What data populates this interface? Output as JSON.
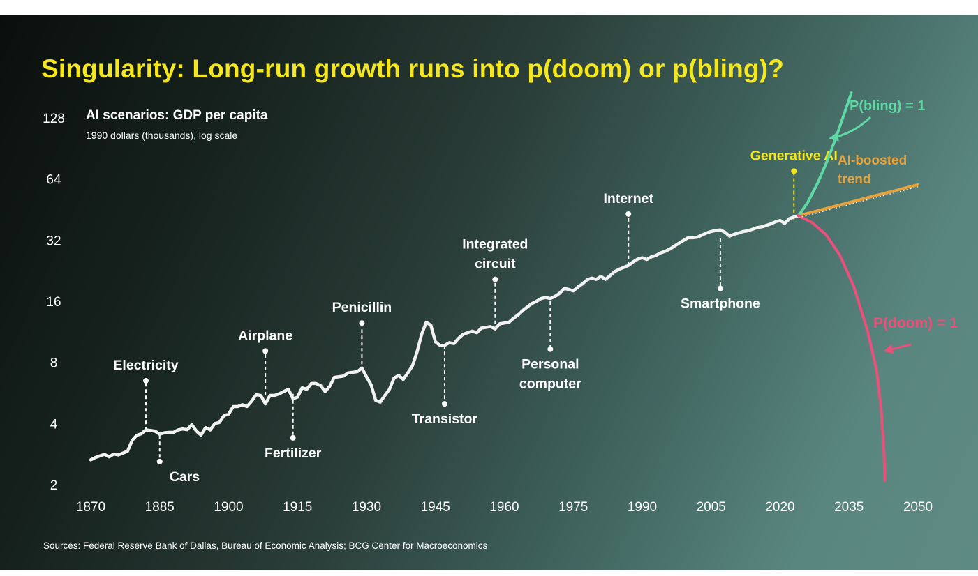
{
  "headline": "Singularity: Long-run growth runs into p(doom) or p(bling)?",
  "source": "Sources: Federal Reserve Bank of Dallas, Bureau of Economic Analysis; BCG Center for Macroeconomics",
  "colors": {
    "headline": "#f5e71f",
    "history": "#f2f2f2",
    "bling": "#5fd9a4",
    "doom": "#e9507a",
    "trend": "#e8a23c",
    "genai": "#f5e71f",
    "text": "#ffffff"
  },
  "chart_data": {
    "type": "line",
    "title": "AI scenarios: GDP per capita",
    "subtitle": "1990 dollars (thousands), log scale",
    "y_scale": "log2",
    "ylim": [
      2,
      128
    ],
    "xlim": [
      1870,
      2050
    ],
    "y_ticks": [
      2,
      4,
      8,
      16,
      32,
      64,
      128
    ],
    "x_ticks": [
      1870,
      1885,
      1900,
      1915,
      1930,
      1945,
      1960,
      1975,
      1990,
      2005,
      2020,
      2035,
      2050
    ],
    "series": [
      {
        "key": "history",
        "x": [
          1870,
          1871,
          1872,
          1873,
          1874,
          1875,
          1876,
          1877,
          1878,
          1879,
          1880,
          1881,
          1882,
          1883,
          1884,
          1885,
          1886,
          1887,
          1888,
          1889,
          1890,
          1891,
          1892,
          1893,
          1894,
          1895,
          1896,
          1897,
          1898,
          1899,
          1900,
          1901,
          1902,
          1903,
          1904,
          1905,
          1906,
          1907,
          1908,
          1909,
          1910,
          1911,
          1912,
          1913,
          1914,
          1915,
          1916,
          1917,
          1918,
          1919,
          1920,
          1921,
          1922,
          1923,
          1924,
          1925,
          1926,
          1927,
          1928,
          1929,
          1930,
          1931,
          1932,
          1933,
          1934,
          1935,
          1936,
          1937,
          1938,
          1939,
          1940,
          1941,
          1942,
          1943,
          1944,
          1945,
          1946,
          1947,
          1948,
          1949,
          1950,
          1951,
          1952,
          1953,
          1954,
          1955,
          1956,
          1957,
          1958,
          1959,
          1960,
          1961,
          1962,
          1963,
          1964,
          1965,
          1966,
          1967,
          1968,
          1969,
          1970,
          1971,
          1972,
          1973,
          1974,
          1975,
          1976,
          1977,
          1978,
          1979,
          1980,
          1981,
          1982,
          1983,
          1984,
          1985,
          1986,
          1987,
          1988,
          1989,
          1990,
          1991,
          1992,
          1993,
          1994,
          1995,
          1996,
          1997,
          1998,
          1999,
          2000,
          2001,
          2002,
          2003,
          2004,
          2005,
          2006,
          2007,
          2008,
          2009,
          2010,
          2011,
          2012,
          2013,
          2014,
          2015,
          2016,
          2017,
          2018,
          2019,
          2020,
          2021,
          2022,
          2023,
          2024
        ],
        "values": [
          2.65,
          2.72,
          2.77,
          2.82,
          2.74,
          2.83,
          2.8,
          2.86,
          2.92,
          3.3,
          3.5,
          3.56,
          3.72,
          3.7,
          3.67,
          3.54,
          3.6,
          3.62,
          3.62,
          3.72,
          3.76,
          3.73,
          3.95,
          3.67,
          3.51,
          3.82,
          3.72,
          4.0,
          4.05,
          4.38,
          4.45,
          4.85,
          4.85,
          4.95,
          4.85,
          5.15,
          5.55,
          5.5,
          5.0,
          5.5,
          5.5,
          5.6,
          5.75,
          5.9,
          5.3,
          5.4,
          6.0,
          5.9,
          6.3,
          6.3,
          6.15,
          5.75,
          6.1,
          6.75,
          6.8,
          6.85,
          7.1,
          7.15,
          7.2,
          7.5,
          6.8,
          6.2,
          5.2,
          5.1,
          5.5,
          5.9,
          6.7,
          6.9,
          6.6,
          7.1,
          7.7,
          9.0,
          11.0,
          12.6,
          12.2,
          10.1,
          9.7,
          9.7,
          10.0,
          9.9,
          10.5,
          11.0,
          11.2,
          11.4,
          11.2,
          11.8,
          11.9,
          12.0,
          11.7,
          12.4,
          12.5,
          12.6,
          13.2,
          13.7,
          14.4,
          15.0,
          15.6,
          16.0,
          16.5,
          16.7,
          16.5,
          16.9,
          17.5,
          18.5,
          18.3,
          18.0,
          18.8,
          19.5,
          20.4,
          20.8,
          20.5,
          21.2,
          20.5,
          21.4,
          22.4,
          23.0,
          23.5,
          24.0,
          25.0,
          25.8,
          26.2,
          25.7,
          26.5,
          26.9,
          27.7,
          28.2,
          28.9,
          29.9,
          30.9,
          31.9,
          32.9,
          32.9,
          33.1,
          33.9,
          34.7,
          35.3,
          35.7,
          35.9,
          35.0,
          33.5,
          34.2,
          34.7,
          35.3,
          35.6,
          36.2,
          36.9,
          37.2,
          37.8,
          38.5,
          39.4,
          40.0,
          38.7,
          40.8,
          41.6,
          42.2
        ]
      },
      {
        "key": "ai-boosted-trend",
        "name": "AI-boosted\ntrend",
        "x": [
          2024,
          2030,
          2035,
          2040,
          2045,
          2050
        ],
        "values": [
          42.2,
          45.8,
          49.0,
          52.5,
          56.1,
          60.0
        ]
      },
      {
        "key": "bling",
        "name": "P(bling) = 1",
        "x": [
          2024,
          2026,
          2028,
          2030,
          2032,
          2034,
          2035.5
        ],
        "values": [
          42.2,
          49,
          60,
          76,
          100,
          135,
          170
        ]
      },
      {
        "key": "doom",
        "name": "P(doom) = 1",
        "x": [
          2024,
          2027,
          2030,
          2033,
          2036,
          2039,
          2041,
          2042,
          2042.6,
          2042.8
        ],
        "values": [
          42.2,
          39,
          34,
          27,
          19,
          11.5,
          7.3,
          4.7,
          2.9,
          2.1
        ]
      }
    ],
    "annotations": [
      {
        "label": "Electricity",
        "x": 1882,
        "y": 3.7,
        "tip": 6.5
      },
      {
        "label": "Cars",
        "x": 1885,
        "y": 3.5,
        "tip": 2.6
      },
      {
        "label": "Airplane",
        "x": 1908,
        "y": 5.5,
        "tip": 9.1
      },
      {
        "label": "Fertilizer",
        "x": 1914,
        "y": 5.6,
        "tip": 3.4
      },
      {
        "label": "Penicillin",
        "x": 1929,
        "y": 7.3,
        "tip": 12.5
      },
      {
        "label": "Transistor",
        "x": 1947,
        "y": 9.7,
        "tip": 5.0
      },
      {
        "label": "Integrated\ncircuit",
        "x": 1958,
        "y": 11.5,
        "tip": 20.5
      },
      {
        "label": "Personal\ncomputer",
        "x": 1970,
        "y": 16.0,
        "tip": 9.3
      },
      {
        "label": "Internet",
        "x": 1987,
        "y": 24.0,
        "tip": 43.0
      },
      {
        "label": "Smartphone",
        "x": 2007,
        "y": 32.6,
        "tip": 18.5
      },
      {
        "label": "Generative AI",
        "x": 2023,
        "y": 40.5,
        "tip": 70.0
      }
    ]
  }
}
